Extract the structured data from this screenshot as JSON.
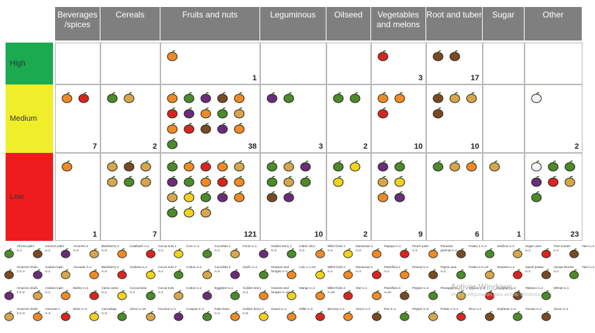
{
  "columns": [
    "Beverages /spices",
    "Cereals",
    "Fruits and nuts",
    "Leguminous",
    "Oilseed",
    "Vegetables and melons",
    "Root and tuber",
    "Sugar",
    "Other"
  ],
  "rows": [
    {
      "label": "High",
      "color": "#1aaa50",
      "counts": [
        "",
        "",
        "1",
        "",
        "",
        "3",
        "17",
        "",
        ""
      ],
      "icons": [
        [],
        [],
        [
          "orange"
        ],
        [],
        [],
        [
          "red"
        ],
        [
          "brown",
          "brown"
        ],
        [],
        []
      ]
    },
    {
      "label": "Medium",
      "color": "#f0ee2a",
      "counts": [
        "7",
        "2",
        "38",
        "3",
        "2",
        "10",
        "10",
        "",
        "2"
      ],
      "icons": [
        [
          "orange",
          "red"
        ],
        [
          "green",
          "tan"
        ],
        [
          "orange",
          "green",
          "purple",
          "brown",
          "orange",
          "red",
          "purple",
          "orange",
          "green",
          "tan",
          "orange",
          "red",
          "brown",
          "purple",
          "orange",
          "green"
        ],
        [
          "purple",
          "green"
        ],
        [
          "green",
          "green"
        ],
        [
          "orange",
          "orange",
          "red"
        ],
        [
          "brown",
          "tan",
          "tan",
          "brown"
        ],
        [],
        [
          "white"
        ]
      ]
    },
    {
      "label": "Low",
      "color": "#ee1c1c",
      "counts": [
        "1",
        "7",
        "121",
        "10",
        "2",
        "9",
        "6",
        "1",
        "23"
      ],
      "icons": [
        [
          "orange"
        ],
        [
          "tan",
          "brown",
          "tan",
          "tan",
          "green",
          "tan"
        ],
        [
          "green",
          "orange",
          "red",
          "orange",
          "tan",
          "purple",
          "green",
          "orange",
          "red",
          "orange",
          "tan",
          "yellow",
          "green",
          "purple",
          "orange",
          "green",
          "yellow",
          "tan"
        ],
        [
          "green",
          "tan",
          "purple",
          "green",
          "tan",
          "green",
          "brown",
          "purple"
        ],
        [
          "green",
          "yellow",
          "yellow"
        ],
        [
          "purple",
          "green",
          "tan",
          "yellow",
          "orange",
          "purple"
        ],
        [
          "green",
          "tan",
          "orange"
        ],
        [
          "tan"
        ],
        [
          "white",
          "green",
          "green",
          "purple",
          "red",
          "tan",
          "green"
        ]
      ]
    }
  ],
  "legend": [
    [
      "African palm n=1",
      "Amazon palm n=1",
      "Amomes 2 n=4",
      "Blackberry 1 n=3",
      "Calabash n=1",
      "Cocoa nuts 1 n=1",
      "Corn n=1",
      "Cucurbita 1 n=1",
      "Fonio n=1",
      "Golden berry 1 n=3",
      "Indian shot n=1",
      "Millet fruits 1 n=1",
      "Musaceae 1 n=2",
      "Papaya n=1",
      "Peach palm n=1",
      "Peruvian parsnip n=1",
      "Potato 1 n=1",
      "Sacllion n=1",
      "Sugar cane n=1",
      "Tree tomato n=1",
      "Yam n=1"
    ],
    [
      "Amazoni chufa 1 n=1",
      "Andean lupin n=1",
      "Avocado n=1",
      "Blackberry 2 n=2",
      "Cashew n=1",
      "Cocoa nuts 2 n=1",
      "Cotton n=1",
      "Cucurbita 2 n=2",
      "Garlic n=1",
      "Grasses and forages n=2",
      "Lulo 1 n=14",
      "Millet fruits 2 n=1",
      "Musaceae 2 n=4",
      "Passiflora 1 n=1",
      "Peanut n=1",
      "Pigeon pea n=1",
      "Potato 2 n=13",
      "Sesame n=1",
      "Sweet potato n=1",
      "Uncipe berries n=1",
      "Yam n=4"
    ],
    [
      "Amazoni chufa 2 n=2",
      "Andean lupin n=1",
      "Barley n=1",
      "Camu camu n=1",
      "Cocoa bean n=1",
      "Cocoa nuts n=1",
      "Cotton n=1",
      "Eggplant n=1",
      "Golden berry n=1",
      "Grasses and forages n=10",
      "Mango n=1",
      "Millet fruits 3 n=19",
      "Oat n=1",
      "Passiflora 2 n=10",
      "Pepper n=4",
      "Pineapple n=1",
      "Quinoa n=1",
      "Sorghum n=1",
      "Tabasco n=1",
      "Wheat n=1",
      ""
    ],
    [
      "Amazoni chufa 3 n=3",
      "Annonas 1 n=3",
      "Bean n=3",
      "Cancabaja n=2",
      "Citrus n=10",
      "Coconut n=1",
      "Cowpea n=1",
      "Faba bean n=1",
      "Golden berry 2 n=5",
      "Guava n=1",
      "Millet n=2",
      "Mocony n=1",
      "Onion n=1",
      "Pea n=1",
      "Pepper n=3",
      "Potato 1 n=1",
      "Rice n=1",
      "Soybean n=2",
      "Tomato n=1",
      "Yacon n=1",
      ""
    ]
  ],
  "watermark": {
    "title": "Activar Windows",
    "sub": "Ve a Configuración para activar Windows."
  },
  "icon_colors": {
    "orange": "#f08a24",
    "red": "#d8261f",
    "green": "#4c8a2a",
    "purple": "#6b2c7a",
    "brown": "#7a4a22",
    "tan": "#d8a64a",
    "yellow": "#f2d21c",
    "white": "#f4f4f4"
  }
}
